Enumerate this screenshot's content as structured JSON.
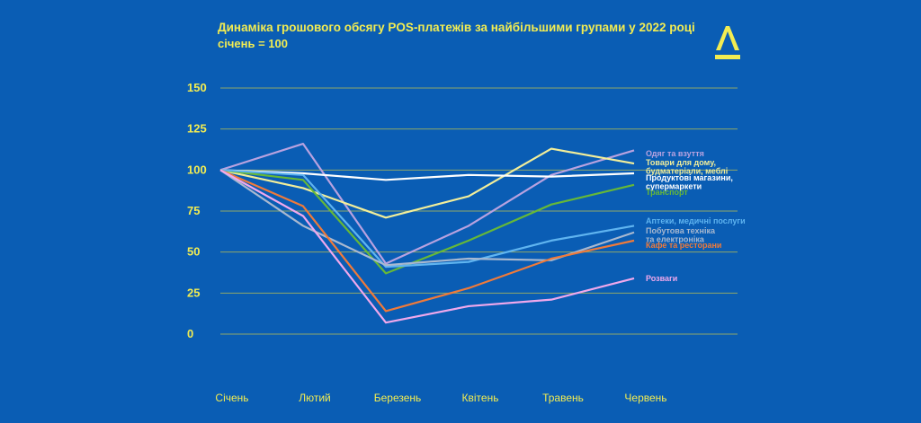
{
  "title": "Динаміка грошового обсягу POS-платежів за найбільшими групами у 2022 році",
  "subtitle": "січень = 100",
  "brand_color": "#f2ec52",
  "background_color": "#0a5db4",
  "chart_data": {
    "type": "line",
    "title": "Динаміка грошового обсягу POS-платежів за найбільшими групами у 2022 році",
    "subtitle": "січень = 100",
    "xlabel": "",
    "ylabel": "",
    "categories": [
      "Січень",
      "Лютий",
      "Березень",
      "Квітень",
      "Травень",
      "Червень"
    ],
    "ylim": [
      0,
      150
    ],
    "yticks": [
      0,
      25,
      50,
      75,
      100,
      125,
      150
    ],
    "grid": true,
    "legend": "right, labels at line ends",
    "series": [
      {
        "name": "Одяг та взуття",
        "color": "#b8a2e0",
        "values": [
          100,
          116,
          43,
          66,
          97,
          112
        ]
      },
      {
        "name": "Товари для дому, будматеріали, меблі",
        "color": "#f2ee9a",
        "values": [
          100,
          89,
          71,
          84,
          113,
          104
        ]
      },
      {
        "name": "Продуктові магазини, супермаркети",
        "color": "#ffffff",
        "values": [
          100,
          98,
          94,
          97,
          96,
          98
        ]
      },
      {
        "name": "Транспорт",
        "color": "#66b838",
        "values": [
          100,
          94,
          37,
          57,
          79,
          91
        ]
      },
      {
        "name": "Аптеки, медичні послуги",
        "color": "#5fb4f0",
        "values": [
          100,
          97,
          41,
          44,
          57,
          66
        ]
      },
      {
        "name": "Побутова техніка та електроніка",
        "color": "#a8b8d0",
        "values": [
          100,
          66,
          42,
          46,
          45,
          62
        ]
      },
      {
        "name": "Кафе та ресторани",
        "color": "#ef7a3a",
        "values": [
          100,
          78,
          14,
          28,
          46,
          57
        ]
      },
      {
        "name": "Розваги",
        "color": "#f0a8ec",
        "values": [
          100,
          72,
          7,
          17,
          21,
          34
        ]
      }
    ]
  }
}
